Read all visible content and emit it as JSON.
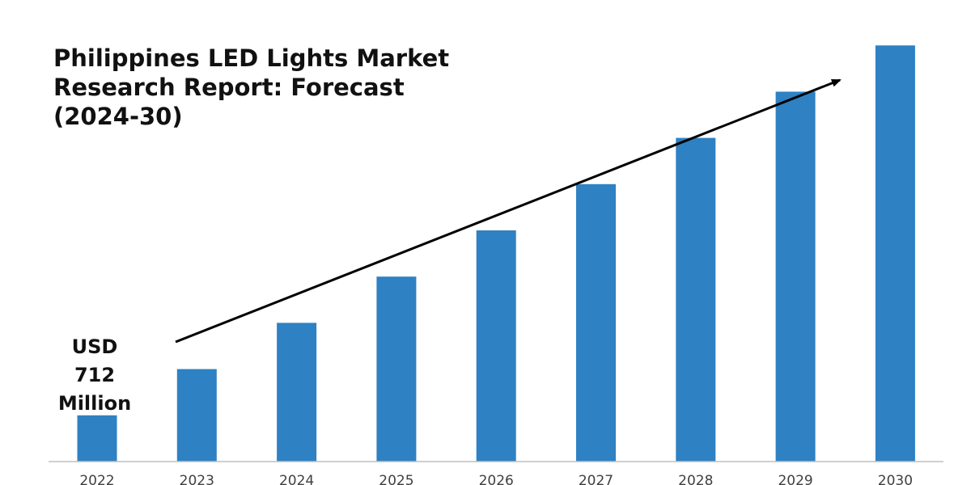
{
  "chart_data": {
    "type": "bar",
    "title": "Philippines LED Lights Market\nResearch Report: Forecast\n(2024-30)",
    "categories": [
      "2022",
      "2023",
      "2024",
      "2025",
      "2026",
      "2027",
      "2028",
      "2029",
      "2030"
    ],
    "values": [
      1,
      2,
      3,
      4,
      5,
      6,
      7,
      8,
      9
    ],
    "ylim": [
      0,
      9.3
    ],
    "yaxis_visible": false,
    "grid": false,
    "annotations": [
      {
        "text": "USD 712 Million",
        "target_category": "2022"
      }
    ],
    "trend_arrow": true
  },
  "callout": {
    "lines": [
      "USD",
      "712",
      "Million"
    ]
  },
  "colors": {
    "bar": "#2e81c3",
    "axis": "#bfbfbf",
    "text": "#111111",
    "tick_text": "#404040",
    "arrow": "#000000"
  }
}
